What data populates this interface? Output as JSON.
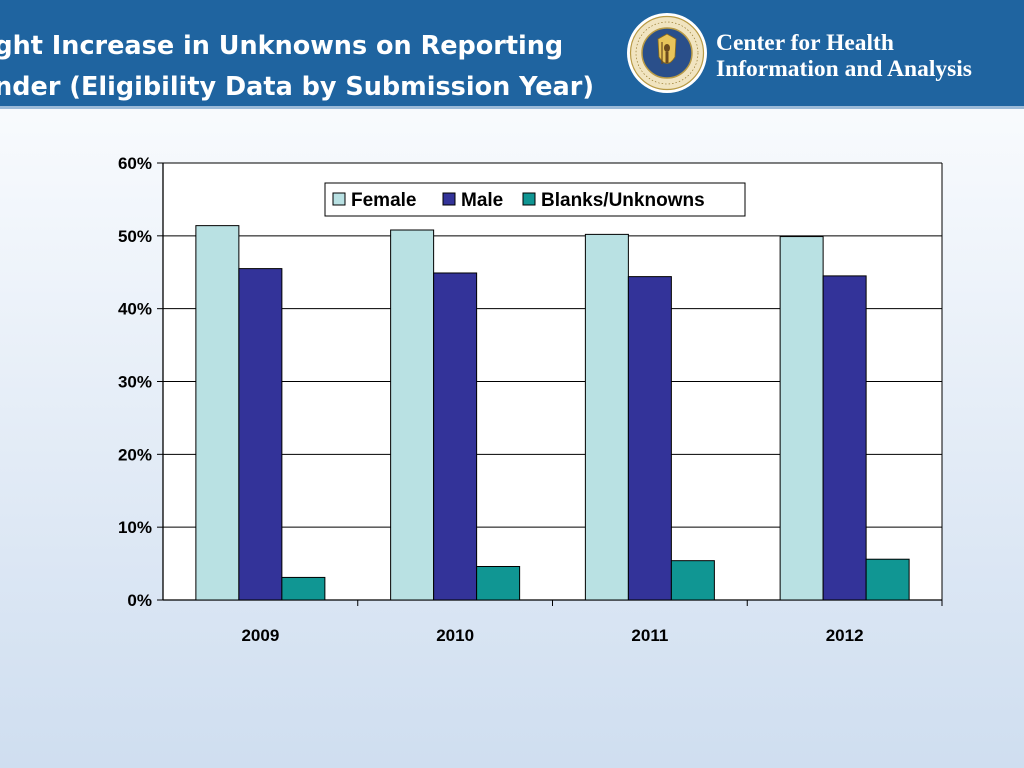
{
  "header": {
    "title_line1": "light Increase in Unknowns on Reporting",
    "title_line2": "ender (Eligibility Data by Submission Year)",
    "org_line1": "Center for Health",
    "org_line2": "Information and Analysis",
    "seal_icon": "massachusetts-seal-icon"
  },
  "colors": {
    "header_bg": "#1f64a0",
    "female": "#b9e1e3",
    "male": "#333399",
    "blanks": "#109693"
  },
  "chart_data": {
    "type": "bar",
    "categories": [
      "2009",
      "2010",
      "2011",
      "2012"
    ],
    "series": [
      {
        "name": "Female",
        "values": [
          51.4,
          50.8,
          50.2,
          49.9
        ]
      },
      {
        "name": "Male",
        "values": [
          45.5,
          44.9,
          44.4,
          44.5
        ]
      },
      {
        "name": "Blanks/Unknowns",
        "values": [
          3.1,
          4.6,
          5.4,
          5.6
        ]
      }
    ],
    "title": "",
    "xlabel": "",
    "ylabel": "",
    "ylim": [
      0,
      60
    ],
    "yticks": [
      0,
      10,
      20,
      30,
      40,
      50,
      60
    ],
    "ytick_labels": [
      "0%",
      "10%",
      "20%",
      "30%",
      "40%",
      "50%",
      "60%"
    ],
    "grid": true,
    "legend_position": "top-center"
  }
}
